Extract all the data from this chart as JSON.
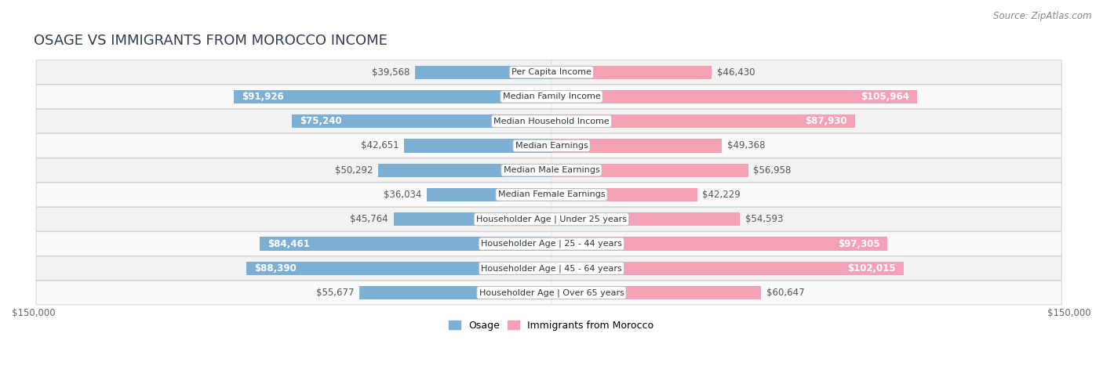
{
  "title": "OSAGE VS IMMIGRANTS FROM MOROCCO INCOME",
  "source": "Source: ZipAtlas.com",
  "categories": [
    "Per Capita Income",
    "Median Family Income",
    "Median Household Income",
    "Median Earnings",
    "Median Male Earnings",
    "Median Female Earnings",
    "Householder Age | Under 25 years",
    "Householder Age | 25 - 44 years",
    "Householder Age | 45 - 64 years",
    "Householder Age | Over 65 years"
  ],
  "osage_values": [
    39568,
    91926,
    75240,
    42651,
    50292,
    36034,
    45764,
    84461,
    88390,
    55677
  ],
  "morocco_values": [
    46430,
    105964,
    87930,
    49368,
    56958,
    42229,
    54593,
    97305,
    102015,
    60647
  ],
  "osage_labels": [
    "$39,568",
    "$91,926",
    "$75,240",
    "$42,651",
    "$50,292",
    "$36,034",
    "$45,764",
    "$84,461",
    "$88,390",
    "$55,677"
  ],
  "morocco_labels": [
    "$46,430",
    "$105,964",
    "$87,930",
    "$49,368",
    "$56,958",
    "$42,229",
    "$54,593",
    "$97,305",
    "$102,015",
    "$60,647"
  ],
  "osage_color": "#7bafd4",
  "morocco_color": "#f4a0b5",
  "osage_dark_color": "#5a9ec8",
  "morocco_dark_color": "#f07090",
  "max_value": 150000,
  "row_bg_odd": "#f2f2f2",
  "row_bg_even": "#fafafa",
  "title_fontsize": 13,
  "source_fontsize": 8.5,
  "bar_label_fontsize": 8.5,
  "category_fontsize": 8,
  "axis_label_fontsize": 8.5,
  "legend_fontsize": 9,
  "bar_height": 0.55,
  "white_label_threshold": 65000,
  "legend_label_osage": "Osage",
  "legend_label_morocco": "Immigrants from Morocco"
}
